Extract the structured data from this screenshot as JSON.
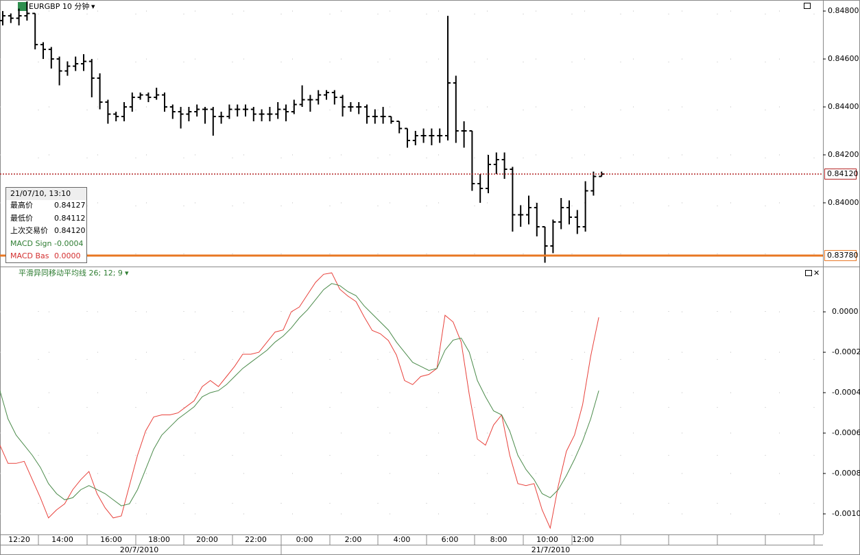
{
  "chart_data": [
    {
      "type": "ohlc",
      "title": "EURGBP 10 分钟",
      "color": "#000000",
      "open": [
        0.8476,
        0.8478,
        0.8477,
        0.8478,
        0.8479,
        0.8466,
        0.8464,
        0.846,
        0.8455,
        0.8457,
        0.8458,
        0.8459,
        0.8452,
        0.8442,
        0.8437,
        0.8436,
        0.844,
        0.8444,
        0.8445,
        0.8444,
        0.8445,
        0.844,
        0.8438,
        0.8437,
        0.8438,
        0.8439,
        0.8439,
        0.8436,
        0.8436,
        0.8439,
        0.8439,
        0.8439,
        0.8437,
        0.8437,
        0.8437,
        0.8439,
        0.8438,
        0.8441,
        0.8443,
        0.8443,
        0.8445,
        0.8446,
        0.8444,
        0.844,
        0.844,
        0.844,
        0.8436,
        0.8436,
        0.8436,
        0.8434,
        0.8431,
        0.8426,
        0.8428,
        0.8428,
        0.8428,
        0.8428,
        0.845,
        0.843,
        0.843,
        0.8408,
        0.8406,
        0.8416,
        0.8418,
        0.8414,
        0.8395,
        0.8395,
        0.8398,
        0.839,
        0.8382,
        0.8392,
        0.8398,
        0.8394,
        0.839,
        0.8405,
        0.8411
      ],
      "high": [
        0.848,
        0.8479,
        0.8481,
        0.8484,
        0.8479,
        0.8467,
        0.8465,
        0.8461,
        0.8459,
        0.8461,
        0.8462,
        0.846,
        0.8454,
        0.8443,
        0.8438,
        0.8442,
        0.8446,
        0.8446,
        0.8446,
        0.8448,
        0.8446,
        0.8441,
        0.844,
        0.844,
        0.8441,
        0.844,
        0.844,
        0.8438,
        0.8441,
        0.8441,
        0.8441,
        0.844,
        0.8439,
        0.844,
        0.8442,
        0.8441,
        0.8443,
        0.8449,
        0.8445,
        0.8447,
        0.8447,
        0.8447,
        0.8445,
        0.8442,
        0.8442,
        0.8441,
        0.8439,
        0.844,
        0.8436,
        0.8434,
        0.8431,
        0.843,
        0.8431,
        0.8431,
        0.8431,
        0.8478,
        0.8453,
        0.8434,
        0.843,
        0.8412,
        0.842,
        0.8421,
        0.8421,
        0.8415,
        0.8399,
        0.8403,
        0.84,
        0.839,
        0.8393,
        0.8402,
        0.8401,
        0.8397,
        0.8409,
        0.8413,
        0.8413
      ],
      "low": [
        0.8474,
        0.8475,
        0.8474,
        0.8476,
        0.8464,
        0.846,
        0.8456,
        0.8449,
        0.8453,
        0.8455,
        0.8455,
        0.8444,
        0.8439,
        0.8433,
        0.8434,
        0.8434,
        0.8438,
        0.8443,
        0.8442,
        0.8443,
        0.8438,
        0.8435,
        0.8431,
        0.8434,
        0.8436,
        0.8433,
        0.8428,
        0.8433,
        0.8435,
        0.8436,
        0.8436,
        0.8434,
        0.8434,
        0.8434,
        0.8435,
        0.8434,
        0.8437,
        0.844,
        0.8438,
        0.8441,
        0.8443,
        0.8441,
        0.8436,
        0.8438,
        0.8437,
        0.8433,
        0.8433,
        0.8433,
        0.8433,
        0.8429,
        0.8423,
        0.8424,
        0.8425,
        0.8424,
        0.8425,
        0.8426,
        0.8425,
        0.8423,
        0.8405,
        0.84,
        0.8404,
        0.8412,
        0.841,
        0.8388,
        0.839,
        0.8391,
        0.8386,
        0.8375,
        0.8379,
        0.8389,
        0.8391,
        0.8387,
        0.8388,
        0.8403,
        0.8411
      ],
      "close": [
        0.8478,
        0.8477,
        0.8478,
        0.8479,
        0.8466,
        0.8464,
        0.846,
        0.8455,
        0.8457,
        0.8458,
        0.8459,
        0.8452,
        0.8442,
        0.8437,
        0.8436,
        0.844,
        0.8444,
        0.8445,
        0.8444,
        0.8445,
        0.844,
        0.8438,
        0.8437,
        0.8438,
        0.8439,
        0.8439,
        0.8436,
        0.8436,
        0.8439,
        0.8439,
        0.8439,
        0.8437,
        0.8437,
        0.8437,
        0.8439,
        0.8438,
        0.8441,
        0.8443,
        0.8443,
        0.8445,
        0.8446,
        0.8444,
        0.844,
        0.844,
        0.844,
        0.8436,
        0.8436,
        0.8436,
        0.8434,
        0.8431,
        0.8426,
        0.8428,
        0.8428,
        0.8428,
        0.8428,
        0.845,
        0.843,
        0.843,
        0.8408,
        0.8406,
        0.8416,
        0.8418,
        0.8414,
        0.8395,
        0.8395,
        0.8398,
        0.839,
        0.8382,
        0.8392,
        0.8398,
        0.8394,
        0.839,
        0.8405,
        0.8411,
        0.8412
      ],
      "ylim": [
        0.83737,
        0.84846
      ],
      "yticks": [
        {
          "value": 0.848,
          "label": "0.84800"
        },
        {
          "value": 0.846,
          "label": "0.84600"
        },
        {
          "value": 0.844,
          "label": "0.84400"
        },
        {
          "value": 0.842,
          "label": "0.84200"
        },
        {
          "value": 0.84,
          "label": "0.84000"
        }
      ],
      "lines": [
        {
          "value": 0.8412,
          "label": "0.84120",
          "color": "#b22222",
          "style": "dotted"
        },
        {
          "value": 0.8378,
          "label": "0.83780",
          "color": "#e87722",
          "style": "solid"
        }
      ],
      "grid": true
    },
    {
      "type": "line",
      "title": "平滑异同移动平均线 26; 12; 9",
      "series": [
        {
          "color": "#e8403a",
          "values": [
            -0.00066,
            -0.00075,
            -0.00075,
            -0.00074,
            -0.00083,
            -0.00092,
            -0.00102,
            -0.00098,
            -0.00095,
            -0.00088,
            -0.00083,
            -0.00079,
            -0.0009,
            -0.00097,
            -0.00102,
            -0.00101,
            -0.00086,
            -0.00071,
            -0.00059,
            -0.00052,
            -0.00051,
            -0.00051,
            -0.0005,
            -0.00047,
            -0.00044,
            -0.00037,
            -0.00034,
            -0.00037,
            -0.00032,
            -0.00027,
            -0.00021,
            -0.00021,
            -0.0002,
            -0.00015,
            -0.0001,
            -9e-05,
            0.0,
            2.4e-05,
            8.5e-05,
            0.000146,
            0.000186,
            0.000193,
            0.000112,
            7.8e-05,
            5.1e-05,
            -2.4e-05,
            -9.2e-05,
            -0.000108,
            -0.000142,
            -0.000214,
            -0.00034,
            -0.00036,
            -0.00032,
            -0.00031,
            -0.00028,
            -1.7e-05,
            -5e-05,
            -0.00015,
            -0.00041,
            -0.00063,
            -0.00066,
            -0.00056,
            -0.00051,
            -0.00071,
            -0.00085,
            -0.00086,
            -0.00085,
            -0.00098,
            -0.00107,
            -0.00086,
            -0.00069,
            -0.00061,
            -0.00046,
            -0.00022,
            -2.7e-05
          ]
        },
        {
          "color": "#4a8a4a",
          "values": [
            -0.00039,
            -0.00053,
            -0.00061,
            -0.00066,
            -0.00071,
            -0.00077,
            -0.00085,
            -0.0009,
            -0.00093,
            -0.00092,
            -0.00088,
            -0.00086,
            -0.00088,
            -0.0009,
            -0.00093,
            -0.00096,
            -0.00095,
            -0.00088,
            -0.00078,
            -0.00068,
            -0.00061,
            -0.00057,
            -0.00053,
            -0.0005,
            -0.00047,
            -0.00042,
            -0.0004,
            -0.00039,
            -0.00036,
            -0.00032,
            -0.00028,
            -0.00025,
            -0.00022,
            -0.00019,
            -0.00015,
            -0.00012,
            -8e-05,
            -3e-05,
            1e-05,
            6e-05,
            0.00011,
            0.00014,
            0.00013,
            0.0001,
            8e-05,
            3e-05,
            -1e-05,
            -5e-05,
            -9e-05,
            -0.00015,
            -0.0002,
            -0.00025,
            -0.00027,
            -0.00029,
            -0.00028,
            -0.00019,
            -0.00014,
            -0.00013,
            -0.0002,
            -0.00034,
            -0.00042,
            -0.00049,
            -0.00051,
            -0.00059,
            -0.00071,
            -0.00078,
            -0.00083,
            -0.0009,
            -0.00092,
            -0.00088,
            -0.00081,
            -0.00073,
            -0.00064,
            -0.00053,
            -0.00039
          ]
        }
      ],
      "ylim": [
        -0.0011017,
        0.000214
      ],
      "yticks": [
        {
          "value": 0,
          "label": "0.0000"
        },
        {
          "value": -0.0002,
          "label": "-0.0002"
        },
        {
          "value": -0.0004,
          "label": "-0.0004"
        },
        {
          "value": -0.0006,
          "label": "-0.0006"
        },
        {
          "value": -0.0008,
          "label": "-0.0008"
        },
        {
          "value": -0.001,
          "label": "-0.0010"
        }
      ],
      "grid": true
    }
  ],
  "time_axis": {
    "labels": [
      "12:20",
      "14:00",
      "16:00",
      "18:00",
      "20:00",
      "22:00",
      "0:00",
      "2:00",
      "4:00",
      "6:00",
      "8:00",
      "10:00",
      "12:00"
    ],
    "dates": [
      "20/7/2010",
      "21/7/2010"
    ]
  },
  "info": {
    "time": "21/07/10, 13:10",
    "rows": [
      {
        "label": "最高价",
        "value": "0.84127"
      },
      {
        "label": "最低价",
        "value": "0.84112"
      },
      {
        "label": "上次交易价",
        "value": "0.84120"
      },
      {
        "label": "MACD Sign",
        "value": "-0.0004"
      },
      {
        "label": "MACD Bas",
        "value": "0.0000"
      }
    ]
  }
}
